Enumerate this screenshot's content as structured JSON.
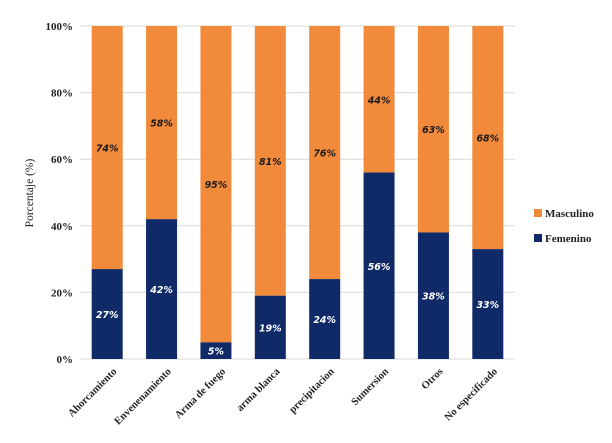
{
  "chart_data": {
    "type": "bar",
    "stacked": true,
    "percent_stacked": true,
    "categories": [
      "Ahorcamiento",
      "Envenenamiento",
      "Arma de fuego",
      "arma blanca",
      "precipitacion",
      "Sumersion",
      "Otros",
      "No especificado"
    ],
    "series": [
      {
        "name": "Femenino",
        "values": [
          27,
          42,
          5,
          19,
          24,
          56,
          38,
          33
        ],
        "labels": [
          "27%",
          "42%",
          "5%",
          "19%",
          "24%",
          "56%",
          "38%",
          "33%"
        ],
        "color": "#0f2a66",
        "label_color": "#ffffff"
      },
      {
        "name": "Masculino",
        "values": [
          74,
          58,
          95,
          81,
          76,
          44,
          63,
          68
        ],
        "labels": [
          "74%",
          "58%",
          "95%",
          "81%",
          "76%",
          "44%",
          "63%",
          "68%"
        ],
        "color": "#f28a3b",
        "label_color": "#1a1a1a"
      }
    ],
    "ylabel": "Porcentaje (%)",
    "ylim": [
      0,
      100
    ],
    "yticks": [
      "0%",
      "20%",
      "40%",
      "60%",
      "80%",
      "100%"
    ],
    "grid": true,
    "legend_position": "right",
    "legend_order": [
      "Masculino",
      "Femenino"
    ]
  }
}
